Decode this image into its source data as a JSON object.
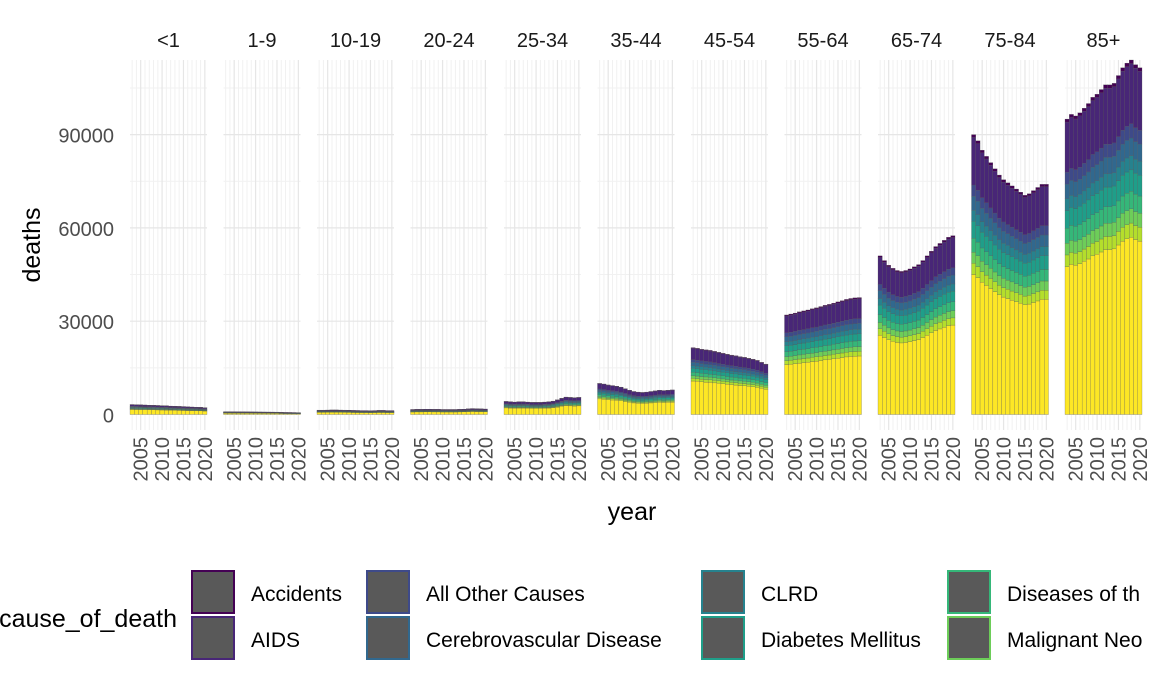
{
  "chart_data": {
    "type": "bar",
    "stacked": true,
    "faceted": true,
    "xlabel": "year",
    "ylabel": "deaths",
    "ylim": [
      -5000,
      114000
    ],
    "xlim": [
      2002.5,
      2020.5
    ],
    "yticks": [
      0,
      30000,
      60000,
      90000
    ],
    "ytick_labels": [
      "0",
      "30000",
      "60000",
      "90000"
    ],
    "xticks": [
      2005,
      2010,
      2015,
      2020
    ],
    "xtick_labels": [
      "2005",
      "2010",
      "2015",
      "2020"
    ],
    "years": [
      2003,
      2004,
      2005,
      2006,
      2007,
      2008,
      2009,
      2010,
      2011,
      2012,
      2013,
      2014,
      2015,
      2016,
      2017,
      2018,
      2019,
      2020
    ],
    "grid": true,
    "legend": {
      "title": "cause_of_death",
      "placement": "bottom",
      "entries": [
        {
          "label": "Accidents",
          "color": "#440154"
        },
        {
          "label": "AIDS",
          "color": "#482677"
        },
        {
          "label": "All Other Causes",
          "color": "#3E4A89"
        },
        {
          "label": "Cerebrovascular Disease",
          "color": "#31688E"
        },
        {
          "label": "CLRD",
          "color": "#26828E"
        },
        {
          "label": "Diabetes Mellitus",
          "color": "#1F9E89"
        },
        {
          "label": "Diseases of th",
          "color": "#35B779"
        },
        {
          "label": "Malignant Neo",
          "color": "#6DCD59"
        }
      ]
    },
    "series_colors": [
      "#440154",
      "#482677",
      "#3E4A89",
      "#31688E",
      "#26828E",
      "#1F9E89",
      "#35B779",
      "#6DCD59",
      "#B4DE2C",
      "#FDE725"
    ],
    "panels": [
      {
        "label": "<1",
        "totals": [
          3200,
          3150,
          3100,
          3050,
          3000,
          2950,
          2900,
          2850,
          2800,
          2700,
          2650,
          2600,
          2550,
          2450,
          2400,
          2350,
          2300,
          2200
        ]
      },
      {
        "label": "1-9",
        "totals": [
          900,
          880,
          860,
          850,
          840,
          830,
          820,
          810,
          800,
          790,
          780,
          770,
          760,
          700,
          650,
          640,
          620,
          600
        ]
      },
      {
        "label": "10-19",
        "totals": [
          1400,
          1400,
          1420,
          1450,
          1450,
          1420,
          1400,
          1350,
          1300,
          1280,
          1250,
          1250,
          1200,
          1250,
          1300,
          1300,
          1250,
          1250
        ]
      },
      {
        "label": "20-24",
        "totals": [
          1600,
          1650,
          1650,
          1700,
          1700,
          1650,
          1650,
          1600,
          1600,
          1600,
          1600,
          1650,
          1700,
          1800,
          1900,
          1850,
          1800,
          1750
        ]
      },
      {
        "label": "25-34",
        "totals": [
          4200,
          4100,
          4000,
          4100,
          4100,
          4000,
          3900,
          3900,
          3900,
          4000,
          4100,
          4300,
          4700,
          5200,
          5600,
          5500,
          5400,
          5500
        ]
      },
      {
        "label": "35-44",
        "totals": [
          10000,
          9800,
          9500,
          9300,
          9100,
          8800,
          8300,
          7800,
          7400,
          7200,
          7100,
          7200,
          7400,
          7600,
          7800,
          7700,
          7800,
          7900
        ]
      },
      {
        "label": "45-54",
        "totals": [
          21500,
          21300,
          21000,
          20800,
          20600,
          20300,
          20000,
          19700,
          19400,
          19100,
          18900,
          18600,
          18400,
          18100,
          17800,
          17400,
          16800,
          16200
        ]
      },
      {
        "label": "55-64",
        "totals": [
          32000,
          32300,
          32600,
          33000,
          33300,
          33600,
          34000,
          34300,
          34700,
          35100,
          35400,
          35800,
          36200,
          36600,
          37000,
          37300,
          37500,
          37600
        ]
      },
      {
        "label": "65-74",
        "totals": [
          51000,
          49500,
          48000,
          47000,
          46300,
          46000,
          46300,
          46800,
          47500,
          48200,
          49500,
          51000,
          52500,
          54000,
          55000,
          56000,
          57000,
          57500
        ]
      },
      {
        "label": "75-84",
        "totals": [
          90000,
          88000,
          85000,
          83000,
          81000,
          79000,
          77000,
          75500,
          74500,
          73500,
          72500,
          71500,
          70500,
          71000,
          72000,
          73000,
          74000,
          74000
        ]
      },
      {
        "label": "85+",
        "totals": [
          95000,
          96500,
          96000,
          97000,
          98500,
          100000,
          102000,
          103000,
          104500,
          106000,
          106000,
          106500,
          109000,
          111500,
          113000,
          114000,
          112500,
          111500
        ]
      }
    ]
  }
}
